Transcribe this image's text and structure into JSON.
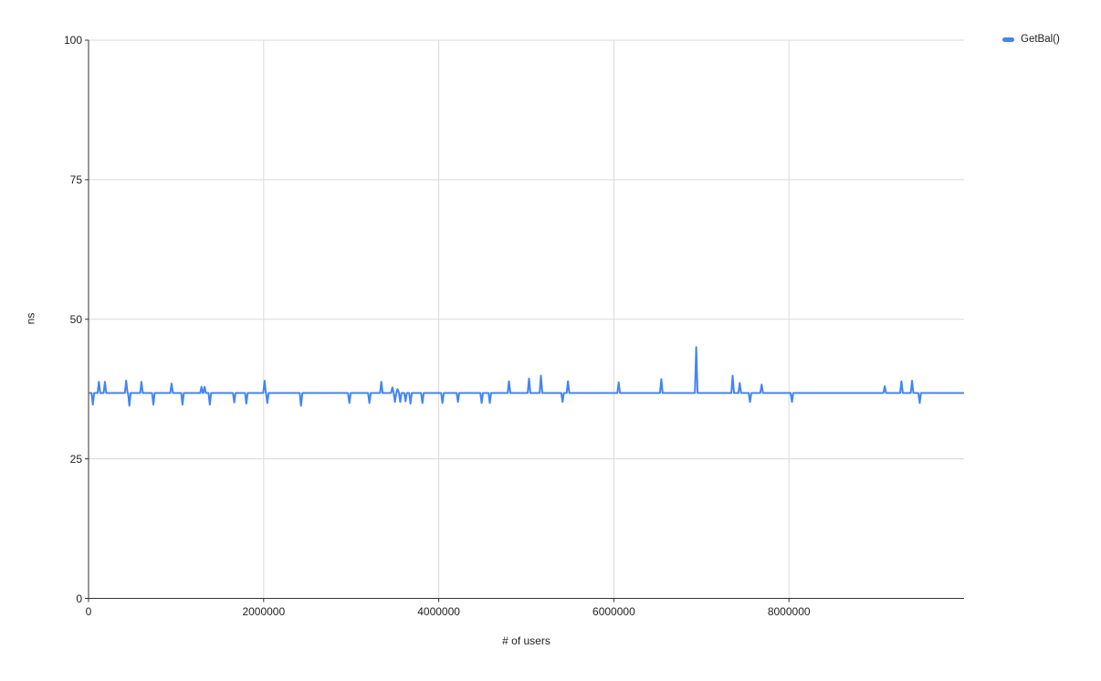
{
  "chart_data": {
    "type": "line",
    "title": "",
    "xlabel": "# of users",
    "ylabel": "ns",
    "xlim": [
      0,
      10000000
    ],
    "ylim": [
      0,
      100
    ],
    "x_ticks": [
      0,
      2000000,
      4000000,
      6000000,
      8000000
    ],
    "x_tick_labels": [
      "0",
      "2000000",
      "4000000",
      "6000000",
      "8000000"
    ],
    "y_ticks": [
      0,
      25,
      50,
      75,
      100
    ],
    "y_tick_labels": [
      "0",
      "25",
      "50",
      "75",
      "100"
    ],
    "grid": true,
    "legend_position": "top-right",
    "colors": {
      "grid": "#dadada",
      "axis": "#333333",
      "text": "#222222",
      "series": "#4285f4"
    },
    "series": [
      {
        "name": "GetBal()",
        "color": "#4285f4",
        "baseline_ns": 36.8,
        "spike_half_width_users": 15000,
        "spikes": [
          [
            49000,
            34.7
          ],
          [
            118000,
            38.8
          ],
          [
            187000,
            38.8
          ],
          [
            430000,
            39.0
          ],
          [
            466000,
            34.5
          ],
          [
            604000,
            38.8
          ],
          [
            740000,
            34.7
          ],
          [
            948000,
            38.5
          ],
          [
            1073000,
            34.7
          ],
          [
            1290000,
            37.9
          ],
          [
            1325000,
            37.9
          ],
          [
            1385000,
            34.7
          ],
          [
            1664000,
            35.1
          ],
          [
            1802000,
            34.9
          ],
          [
            2010000,
            39.0
          ],
          [
            2042000,
            35.0
          ],
          [
            2427000,
            34.5
          ],
          [
            2979000,
            35.0
          ],
          [
            3208000,
            35.0
          ],
          [
            3344000,
            38.8
          ],
          [
            3470000,
            37.8
          ],
          [
            3500000,
            35.2
          ],
          [
            3530000,
            37.5
          ],
          [
            3560000,
            35.2
          ],
          [
            3620000,
            35.3
          ],
          [
            3677000,
            34.9
          ],
          [
            3813000,
            35.0
          ],
          [
            4042000,
            35.0
          ],
          [
            4219000,
            35.2
          ],
          [
            4490000,
            35.0
          ],
          [
            4583000,
            35.0
          ],
          [
            4802000,
            38.9
          ],
          [
            5031000,
            39.4
          ],
          [
            5167000,
            39.9
          ],
          [
            5414000,
            35.2
          ],
          [
            5476000,
            38.9
          ],
          [
            6055000,
            38.7
          ],
          [
            6542000,
            39.3
          ],
          [
            6941000,
            45.0
          ],
          [
            7357000,
            39.9
          ],
          [
            7438000,
            38.6
          ],
          [
            7555000,
            35.2
          ],
          [
            7688000,
            38.3
          ],
          [
            8034000,
            35.2
          ],
          [
            9094000,
            38.0
          ],
          [
            9285000,
            38.9
          ],
          [
            9406000,
            39.0
          ],
          [
            9493000,
            35.0
          ]
        ]
      }
    ]
  }
}
